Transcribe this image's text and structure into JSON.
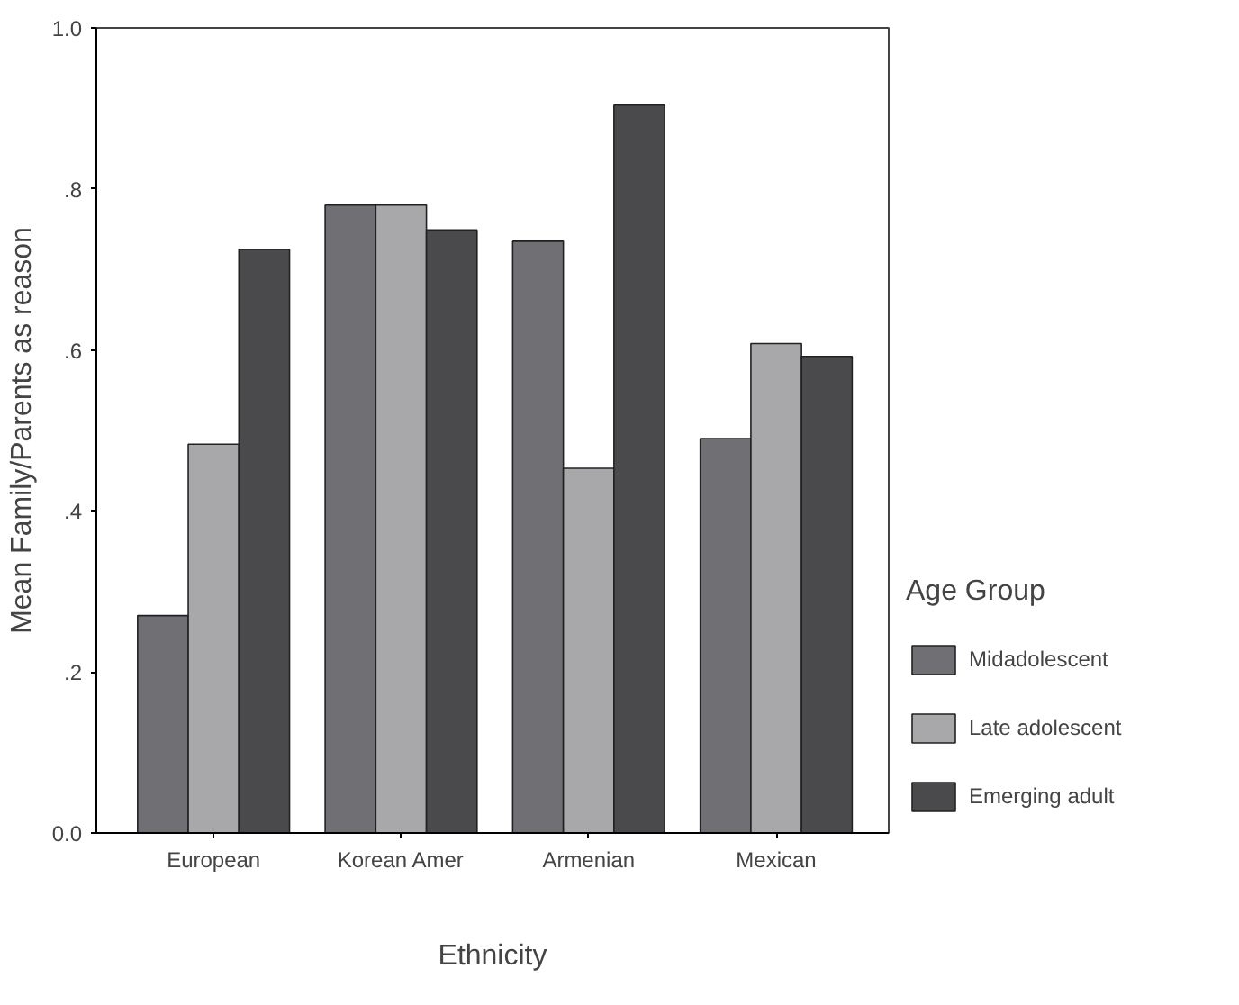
{
  "chart_data": {
    "type": "bar",
    "xlabel": "Ethnicity",
    "ylabel": "Mean Family/Parents as reason",
    "legend_title": "Age Group",
    "categories": [
      "European",
      "Korean Amer",
      "Armenian",
      "Mexican"
    ],
    "series": [
      {
        "name": "Midadolescent",
        "color": "#707074",
        "values": [
          0.27,
          0.78,
          0.735,
          0.49
        ]
      },
      {
        "name": "Late adolescent",
        "color": "#a8a8ab",
        "values": [
          0.483,
          0.78,
          0.453,
          0.608
        ]
      },
      {
        "name": "Emerging adult",
        "color": "#4a4a4c",
        "values": [
          0.725,
          0.749,
          0.904,
          0.592
        ]
      }
    ],
    "ylim": [
      0,
      1.0
    ],
    "yticks": [
      {
        "value": 0,
        "label": "0.0"
      },
      {
        "value": 0.2,
        "label": ".2"
      },
      {
        "value": 0.4,
        "label": ".4"
      },
      {
        "value": 0.6,
        "label": ".6"
      },
      {
        "value": 0.8,
        "label": ".8"
      },
      {
        "value": 1.0,
        "label": "1.0"
      }
    ],
    "grid": false,
    "legend": "right"
  }
}
